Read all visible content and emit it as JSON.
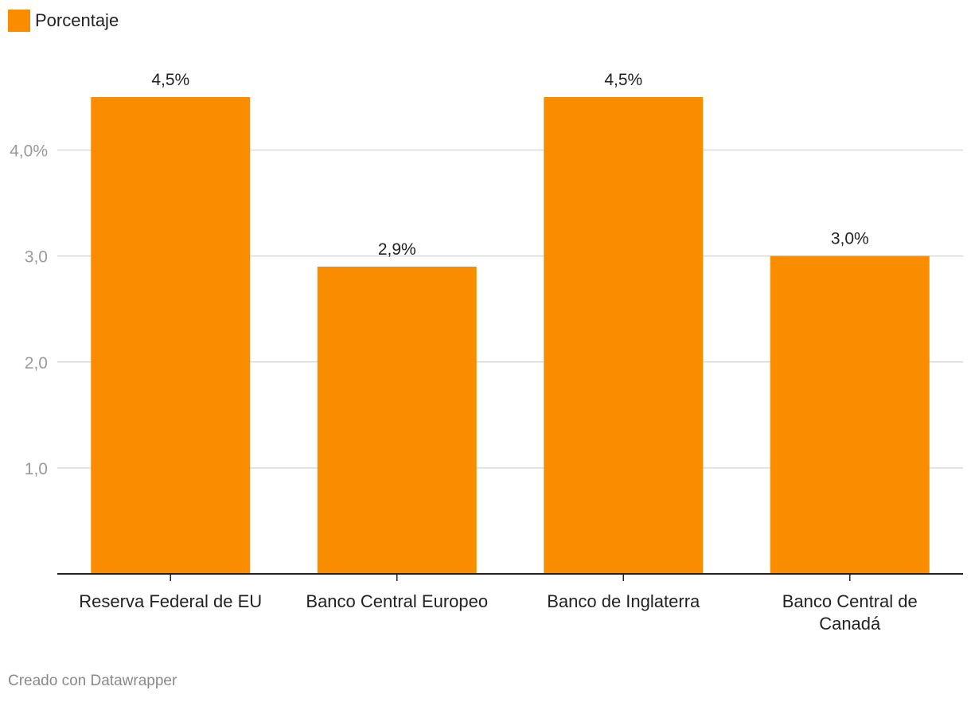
{
  "legend": {
    "label": "Porcentaje"
  },
  "colors": {
    "bar": "#fa8c00",
    "grid": "#d9d9d9",
    "axis": "#222222",
    "tick_text": "#9a9a9a",
    "label_text": "#222222"
  },
  "chart_data": {
    "type": "bar",
    "categories": [
      "Reserva Federal de EU",
      "Banco Central Europeo",
      "Banco de Inglaterra",
      "Banco Central de Canadá"
    ],
    "category_lines": [
      [
        "Reserva Federal de EU"
      ],
      [
        "Banco Central Europeo"
      ],
      [
        "Banco de Inglaterra"
      ],
      [
        "Banco Central de",
        "Canadá"
      ]
    ],
    "series": [
      {
        "name": "Porcentaje",
        "values": [
          4.5,
          2.9,
          4.5,
          3.0
        ]
      }
    ],
    "value_labels": [
      "4,5%",
      "2,9%",
      "4,5%",
      "3,0%"
    ],
    "yticks": [
      1.0,
      2.0,
      3.0,
      4.0
    ],
    "ytick_labels": [
      "1,0",
      "2,0",
      "3,0",
      "4,0%"
    ],
    "ylim": [
      0,
      4.5
    ],
    "grid": true,
    "legend_position": "top-left"
  },
  "footer": {
    "credit": "Creado con Datawrapper"
  }
}
